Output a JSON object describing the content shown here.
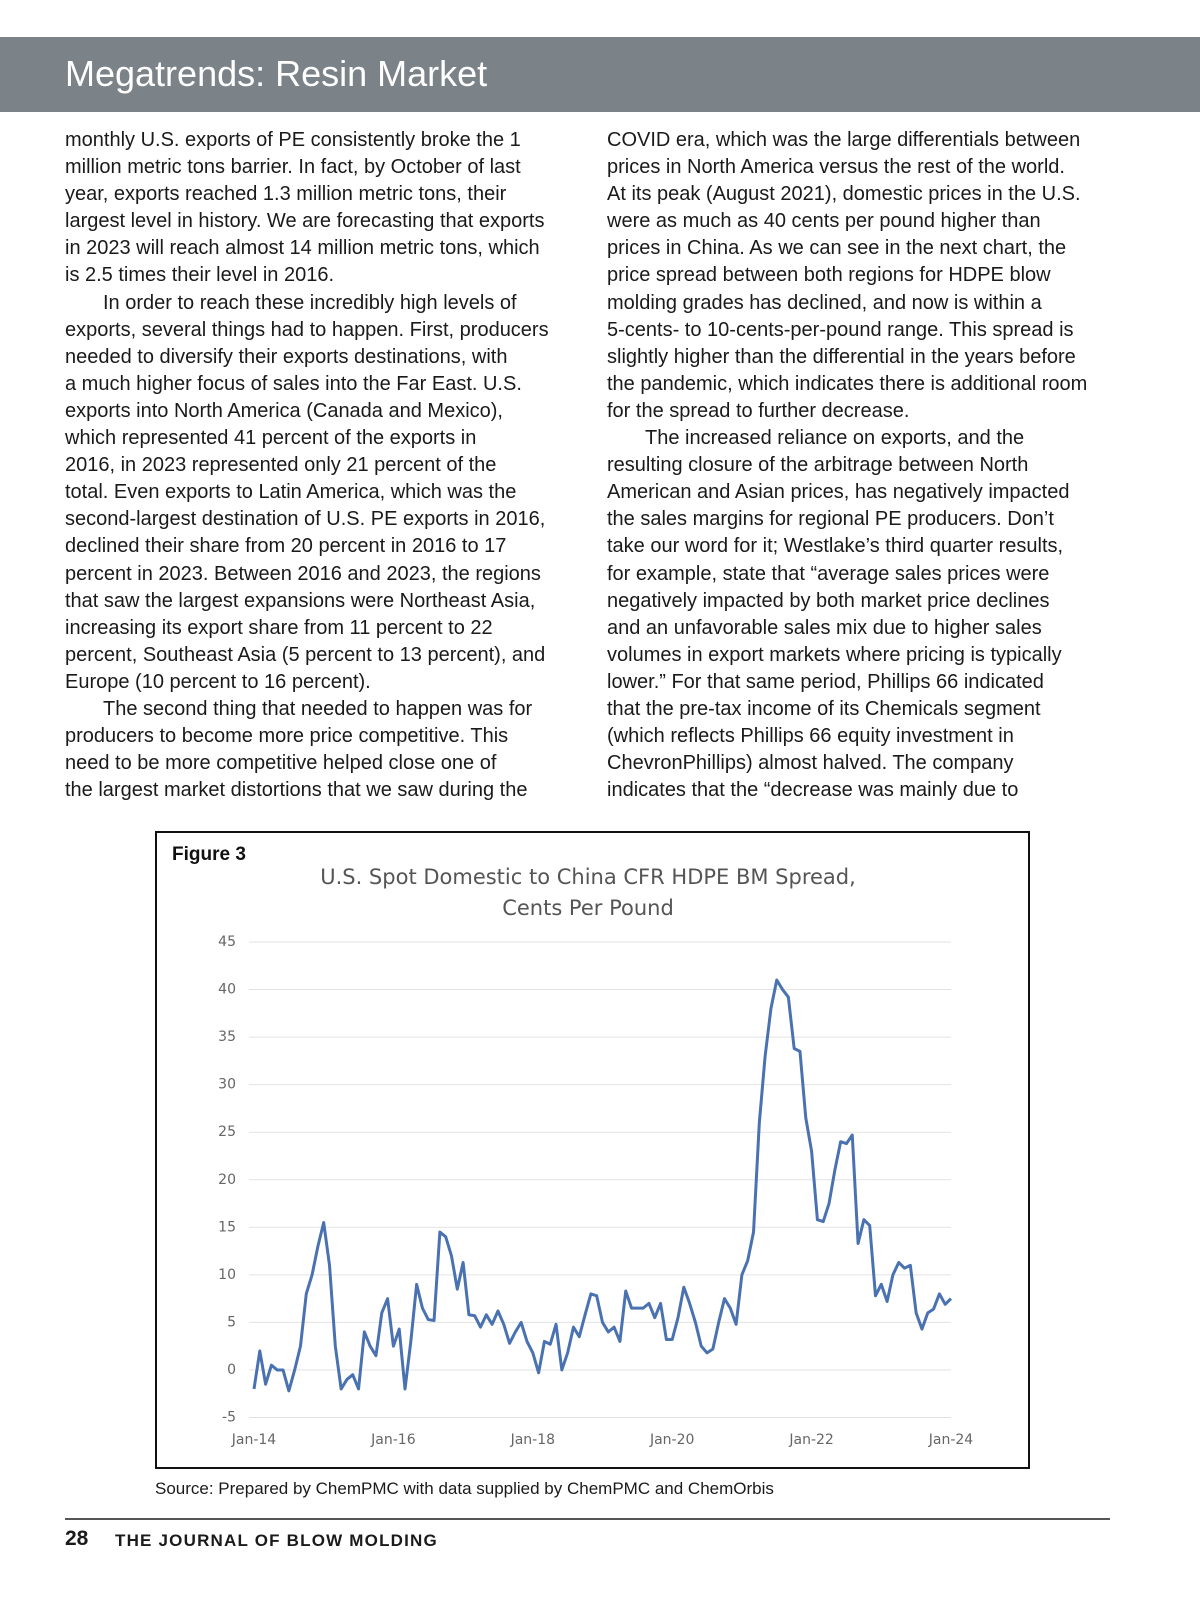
{
  "header": {
    "title": "Megatrends: Resin Market"
  },
  "columns": [
    {
      "paragraphs": [
        {
          "lines": [
            "monthly U.S. exports of PE consistently broke the 1",
            "million metric tons barrier. In fact, by October of last",
            "year, exports reached 1.3 million metric tons, their",
            "largest level in history. We are forecasting that exports",
            "in 2023 will reach almost 14 million metric tons, which",
            "is 2.5 times their level in 2016."
          ]
        },
        {
          "lines": [
            "In order to reach these incredibly high levels of",
            "exports, several things had to happen. First, producers",
            "needed to diversify their exports destinations, with",
            "a much higher focus of sales into the Far East. U.S.",
            "exports into North America (Canada and Mexico),",
            "which represented 41 percent of the exports in",
            "2016, in 2023 represented only 21 percent of the",
            "total. Even exports to Latin America, which was the",
            "second-largest destination of U.S. PE exports in 2016,",
            "declined their share from 20 percent in 2016 to 17",
            "percent in 2023. Between 2016 and 2023, the regions",
            "that saw the largest expansions were Northeast Asia,",
            "increasing its export share from 11 percent to 22",
            "percent, Southeast Asia (5 percent to 13 percent), and",
            "Europe (10 percent to 16 percent)."
          ]
        },
        {
          "lines": [
            "The second thing that needed to happen was for",
            "producers to become more price competitive. This",
            "need to be more competitive helped close one of",
            "the largest market distortions that we saw during the"
          ]
        }
      ]
    },
    {
      "paragraphs": [
        {
          "lines": [
            "COVID era, which was the large differentials between",
            "prices in North America versus the rest of the world.",
            "At its peak (August 2021), domestic prices in the U.S.",
            "were as much as 40 cents per pound higher than",
            "prices in China. As we can see in the next chart, the",
            "price spread between both regions for HDPE blow",
            "molding grades has declined, and now is within a",
            "5-cents- to 10-cents-per-pound range. This spread is",
            "slightly higher than the differential in the years before",
            "the pandemic, which indicates there is additional room",
            "for the spread to further decrease."
          ]
        },
        {
          "lines": [
            "The increased reliance on exports, and the",
            "resulting closure of the arbitrage between North",
            "American and Asian prices, has negatively impacted",
            "the sales margins for regional PE producers. Don’t",
            "take our word for it; Westlake’s third quarter results,",
            "for example, state that “average sales prices were",
            "negatively impacted by both market price declines",
            "and an unfavorable sales mix due to higher sales",
            "volumes in export markets where pricing is typically",
            "lower.” For that same period, Phillips 66 indicated",
            "that the pre-tax income of its Chemicals segment",
            "(which reflects Phillips 66 equity investment in",
            "ChevronPhillips) almost halved. The company",
            "indicates that the “decrease was mainly due to"
          ]
        }
      ]
    }
  ],
  "figure": {
    "label": "Figure 3",
    "source": "Source: Prepared by ChemPMC with data supplied by ChemPMC and ChemOrbis"
  },
  "chart_data": {
    "type": "line",
    "title": [
      "U.S. Spot Domestic to China CFR HDPE BM Spread,",
      "Cents Per Pound"
    ],
    "categories": [
      "Jan-14",
      null,
      null,
      null,
      null,
      null,
      null,
      null,
      null,
      null,
      null,
      null,
      null,
      null,
      null,
      null,
      null,
      null,
      null,
      null,
      null,
      null,
      null,
      null,
      "Jan-16",
      null,
      null,
      null,
      null,
      null,
      null,
      null,
      null,
      null,
      null,
      null,
      null,
      null,
      null,
      null,
      null,
      null,
      null,
      null,
      null,
      null,
      null,
      null,
      "Jan-18",
      null,
      null,
      null,
      null,
      null,
      null,
      null,
      null,
      null,
      null,
      null,
      null,
      null,
      null,
      null,
      null,
      null,
      null,
      null,
      null,
      null,
      null,
      null,
      "Jan-20",
      null,
      null,
      null,
      null,
      null,
      null,
      null,
      null,
      null,
      null,
      null,
      null,
      null,
      null,
      null,
      null,
      null,
      null,
      null,
      null,
      null,
      null,
      null,
      "Jan-22",
      null,
      null,
      null,
      null,
      null,
      null,
      null,
      null,
      null,
      null,
      null,
      null,
      null,
      null,
      null,
      null,
      null,
      null,
      null,
      null,
      null,
      null,
      null,
      "Jan-24"
    ],
    "values": [
      -2,
      2,
      -1.5,
      0.5,
      0,
      0,
      -2.2,
      0,
      2.5,
      8,
      10,
      13,
      15.5,
      11,
      2.5,
      -2,
      -1,
      -0.5,
      -2,
      4,
      2.5,
      1.5,
      6,
      7.5,
      2.5,
      4.3,
      -2,
      3,
      9,
      6.5,
      5.3,
      5.2,
      14.5,
      14,
      12,
      8.5,
      11.3,
      5.8,
      5.7,
      4.5,
      5.8,
      4.8,
      6.2,
      4.8,
      2.8,
      4,
      5,
      3,
      1.8,
      -0.3,
      3,
      2.7,
      4.8,
      0,
      1.8,
      4.5,
      3.5,
      5.8,
      8,
      7.8,
      5,
      4,
      4.5,
      3,
      8.3,
      6.5,
      6.5,
      6.5,
      7,
      5.5,
      7,
      3.2,
      3.2,
      5.5,
      8.7,
      7,
      5,
      2.5,
      1.8,
      2.2,
      5,
      7.5,
      6.5,
      4.8,
      10,
      11.5,
      14.5,
      26,
      33,
      38,
      41,
      40,
      39.2,
      33.8,
      33.5,
      26.5,
      23,
      15.8,
      15.6,
      17.5,
      21,
      24,
      23.8,
      24.7,
      13.3,
      15.8,
      15.2,
      7.8,
      9,
      7.2,
      10,
      11.3,
      10.7,
      11,
      6,
      4.3,
      6,
      6.4,
      8,
      6.9,
      7.5
    ],
    "color": "#4a72b0",
    "ylim": [
      -5,
      45
    ],
    "yticks": [
      -5,
      0,
      5,
      10,
      15,
      20,
      25,
      30,
      35,
      40,
      45
    ],
    "grid": true
  },
  "footer": {
    "page": "28",
    "publication": "THE JOURNAL OF BLOW MOLDING"
  }
}
